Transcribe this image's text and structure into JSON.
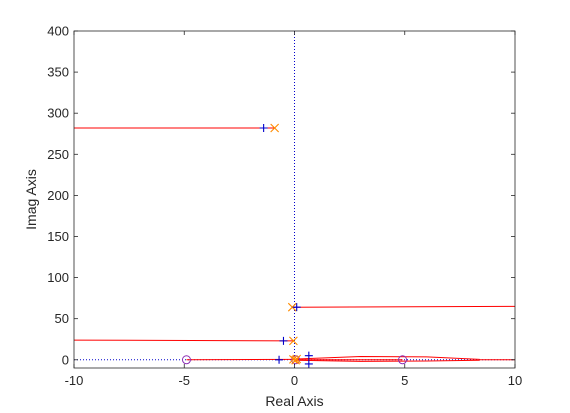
{
  "chart_data": {
    "type": "scatter",
    "title": "",
    "xlabel": "Real Axis",
    "ylabel": "Imag Axis",
    "xlim": [
      -10,
      10
    ],
    "ylim": [
      -10,
      400
    ],
    "xticks": [
      -10,
      -5,
      0,
      5,
      10
    ],
    "xtick_labels": [
      "-10",
      "-5",
      "0",
      "5",
      "10"
    ],
    "yticks": [
      0,
      50,
      100,
      150,
      200,
      250,
      300,
      350,
      400
    ],
    "ytick_labels": [
      "0",
      "50",
      "100",
      "150",
      "200",
      "250",
      "300",
      "350",
      "400"
    ],
    "grid": false,
    "box": true,
    "colors": {
      "locus": "#ff0000",
      "poles": "#ff8c00",
      "zeros": "#8b2fb5",
      "closed_loop": "#0000cc",
      "axis_lines": "#0000cc",
      "frame": "#262626"
    },
    "poles": [
      {
        "x": -0.9,
        "y": 282
      },
      {
        "x": -0.1,
        "y": 64
      },
      {
        "x": -0.05,
        "y": 23
      },
      {
        "x": -0.05,
        "y": 0.5
      },
      {
        "x": 0.05,
        "y": -0.5
      },
      {
        "x": 0.1,
        "y": 1
      }
    ],
    "zeros": [
      {
        "x": -4.9,
        "y": 0
      },
      {
        "x": 4.9,
        "y": 0
      },
      {
        "x": 0.05,
        "y": 0
      }
    ],
    "closed_loop_poles": [
      {
        "x": -1.4,
        "y": 282
      },
      {
        "x": 0.1,
        "y": 64
      },
      {
        "x": -0.5,
        "y": 23
      },
      {
        "x": -0.7,
        "y": 0
      },
      {
        "x": 0.65,
        "y": 5
      },
      {
        "x": 0.65,
        "y": -5
      }
    ],
    "series": [
      {
        "values": [
          {
            "x": -10,
            "y": 282
          },
          {
            "x": -0.9,
            "y": 282
          }
        ]
      },
      {
        "values": [
          {
            "x": -0.1,
            "y": 64
          },
          {
            "x": 10,
            "y": 65
          }
        ]
      },
      {
        "values": [
          {
            "x": -10,
            "y": 24
          },
          {
            "x": -0.05,
            "y": 23
          }
        ]
      },
      {
        "values": [
          {
            "x": -4.9,
            "y": 0
          },
          {
            "x": -0.05,
            "y": 0.5
          }
        ]
      },
      {
        "values": [
          {
            "x": 0.1,
            "y": 1
          },
          {
            "x": 3,
            "y": 4
          },
          {
            "x": 6,
            "y": 3.5
          },
          {
            "x": 8.4,
            "y": 0.5
          }
        ]
      },
      {
        "values": [
          {
            "x": 0.05,
            "y": -0.5
          },
          {
            "x": 3,
            "y": -2
          },
          {
            "x": 6,
            "y": -1.5
          },
          {
            "x": 8.4,
            "y": -0.5
          }
        ]
      },
      {
        "values": [
          {
            "x": 0.05,
            "y": 0
          },
          {
            "x": 4.9,
            "y": 0
          }
        ]
      },
      {
        "values": [
          {
            "x": 8.4,
            "y": 0
          },
          {
            "x": 10,
            "y": 0
          }
        ]
      }
    ]
  }
}
